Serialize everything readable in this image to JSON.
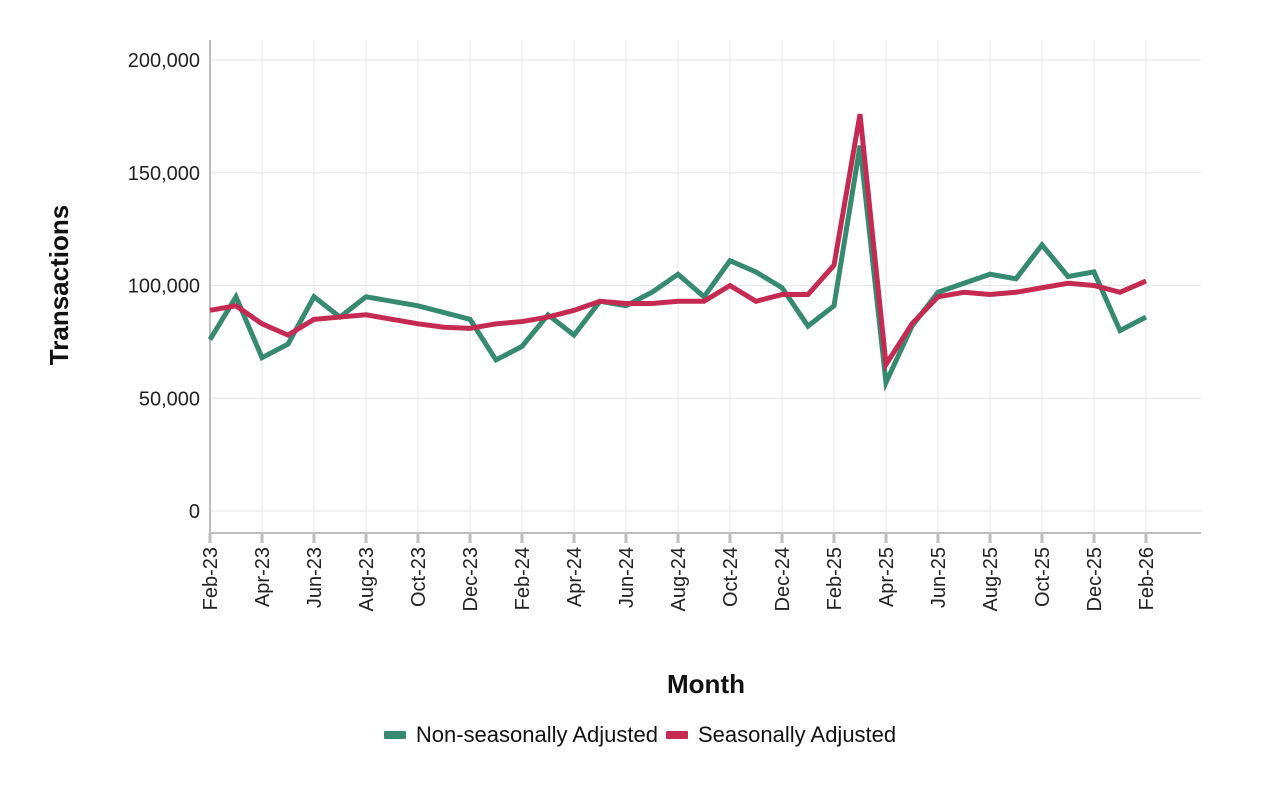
{
  "chart_data": {
    "type": "line",
    "title": "",
    "xlabel": "Month",
    "ylabel": "Transactions",
    "ylim": [
      -10000,
      210000
    ],
    "yticks": [
      0,
      50000,
      100000,
      150000,
      200000
    ],
    "ytick_labels": [
      "0",
      "50,000",
      "100,000",
      "150,000",
      "200,000"
    ],
    "grid": true,
    "legend_position": "bottom",
    "x": [
      "Feb-23",
      "Mar-23",
      "Apr-23",
      "May-23",
      "Jun-23",
      "Jul-23",
      "Aug-23",
      "Sep-23",
      "Oct-23",
      "Nov-23",
      "Dec-23",
      "Jan-24",
      "Feb-24",
      "Mar-24",
      "Apr-24",
      "May-24",
      "Jun-24",
      "Jul-24",
      "Aug-24",
      "Sep-24",
      "Oct-24",
      "Nov-24",
      "Dec-24",
      "Jan-25",
      "Feb-25",
      "Mar-25",
      "Apr-25",
      "May-25",
      "Jun-25",
      "Jul-25",
      "Aug-25",
      "Sep-25",
      "Oct-25",
      "Nov-25",
      "Dec-25",
      "Jan-26",
      "Feb-26"
    ],
    "xtick_labels": [
      "Feb-23",
      "Apr-23",
      "Jun-23",
      "Aug-23",
      "Oct-23",
      "Dec-23",
      "Feb-24",
      "Apr-24",
      "Jun-24",
      "Aug-24",
      "Oct-24",
      "Dec-24",
      "Feb-25",
      "Apr-25",
      "Jun-25",
      "Aug-25",
      "Oct-25",
      "Dec-25",
      "Feb-26"
    ],
    "series": [
      {
        "name": "Non-seasonally Adjusted",
        "color": "#358a70",
        "values": [
          76000,
          95000,
          68000,
          74000,
          95000,
          86000,
          95000,
          93000,
          91000,
          88000,
          85000,
          67000,
          73000,
          87000,
          78000,
          93000,
          91000,
          97000,
          105000,
          95000,
          111000,
          106000,
          99000,
          82000,
          91000,
          162000,
          57000,
          82000,
          97000,
          101000,
          105000,
          103000,
          118000,
          104000,
          106000,
          80000,
          86000
        ]
      },
      {
        "name": "Seasonally Adjusted",
        "color": "#c42a52",
        "values": [
          89000,
          91000,
          83000,
          78000,
          85000,
          86000,
          87000,
          85000,
          83000,
          81500,
          81000,
          83000,
          84000,
          86000,
          89000,
          93000,
          92000,
          92000,
          93000,
          93000,
          100000,
          93000,
          96000,
          96000,
          109000,
          176000,
          65000,
          83000,
          95000,
          97000,
          96000,
          97000,
          99000,
          101000,
          100000,
          97000,
          102000
        ]
      }
    ]
  }
}
